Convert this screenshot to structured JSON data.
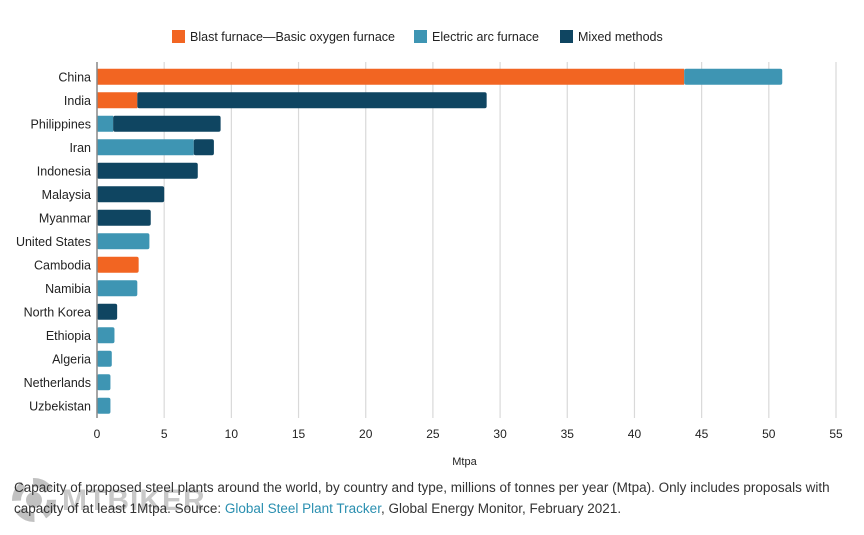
{
  "chart_data": {
    "type": "bar",
    "orientation": "horizontal",
    "stacked": true,
    "title": "",
    "xlabel": "Mtpa",
    "ylabel": "",
    "xlim": [
      0,
      55
    ],
    "xticks": [
      0,
      5,
      10,
      15,
      20,
      25,
      30,
      35,
      40,
      45,
      50,
      55
    ],
    "grid": true,
    "legend_position": "top-center",
    "categories": [
      "China",
      "India",
      "Philippines",
      "Iran",
      "Indonesia",
      "Malaysia",
      "Myanmar",
      "United States",
      "Cambodia",
      "Namibia",
      "North Korea",
      "Ethiopia",
      "Algeria",
      "Netherlands",
      "Uzbekistan"
    ],
    "series": [
      {
        "name": "Blast furnace—Basic oxygen furnace",
        "color": "#f26522",
        "values": [
          43.7,
          3.0,
          0,
          0,
          0,
          0,
          0,
          0,
          3.1,
          0,
          0,
          0,
          0,
          0,
          0
        ]
      },
      {
        "name": "Electric arc furnace",
        "color": "#3e95b3",
        "values": [
          7.3,
          0,
          1.2,
          7.2,
          0,
          0,
          0,
          3.9,
          0,
          3.0,
          0,
          1.3,
          1.1,
          1.0,
          1.0
        ]
      },
      {
        "name": "Mixed methods",
        "color": "#0f4561",
        "values": [
          0,
          26.0,
          8.0,
          1.5,
          7.5,
          5.0,
          4.0,
          0,
          0,
          0,
          1.5,
          0,
          0,
          0,
          0
        ]
      }
    ]
  },
  "caption": {
    "text_before_link": "Capacity of proposed steel plants around the world, by country and type, millions of tonnes per year (Mtpa). Only includes proposals with capacity of at least 1Mtpa. Source: ",
    "link_text": "Global Steel Plant Tracker",
    "text_after_link": ", Global Energy Monitor, February 2021."
  },
  "watermark": {
    "text": "MTBIKER"
  }
}
